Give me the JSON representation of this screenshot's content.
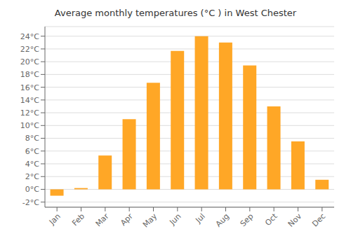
{
  "chart_data": {
    "type": "bar",
    "title": "Average monthly temperatures (°C ) in West Chester",
    "categories": [
      "Jan",
      "Feb",
      "Mar",
      "Apr",
      "May",
      "Jun",
      "Jul",
      "Aug",
      "Sep",
      "Oct",
      "Nov",
      "Dec"
    ],
    "values": [
      -1.0,
      0.2,
      5.3,
      11.0,
      16.7,
      21.7,
      24.0,
      23.0,
      19.4,
      13.0,
      7.5,
      1.5
    ],
    "color": "#FFA726",
    "ylim": [
      -2.8,
      25.5
    ],
    "yticks": [
      {
        "value": -2,
        "label": "-2°C"
      },
      {
        "value": 0,
        "label": "0°C"
      },
      {
        "value": 2,
        "label": "2°C"
      },
      {
        "value": 4,
        "label": "4°C"
      },
      {
        "value": 6,
        "label": "6°C"
      },
      {
        "value": 8,
        "label": "8°C"
      },
      {
        "value": 10,
        "label": "10°C"
      },
      {
        "value": 12,
        "label": "12°C"
      },
      {
        "value": 14,
        "label": "14°C"
      },
      {
        "value": 16,
        "label": "16°C"
      },
      {
        "value": 18,
        "label": "18°C"
      },
      {
        "value": 20,
        "label": "20°C"
      },
      {
        "value": 22,
        "label": "22°C"
      },
      {
        "value": 24,
        "label": "24°C"
      }
    ],
    "grid": true
  }
}
